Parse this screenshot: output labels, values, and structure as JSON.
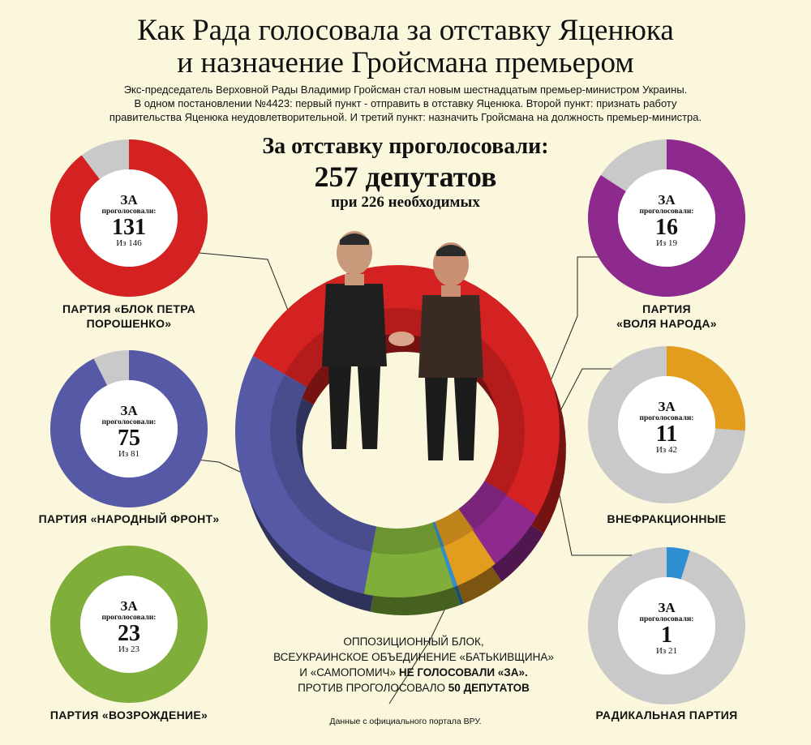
{
  "title_line1": "Как Рада голосовала за отставку Яценюка",
  "title_line2": "и назначение Гройсмана премьером",
  "subtitle": [
    "Экс-председатель Верховной Рады Владимир Гройсман стал новым шестнадцатым премьер-министром Украины.",
    "В одном постановлении №4423: первый пункт - отправить в отставку Яценюка. Второй пункт: признать работу",
    "правительства Яценюка неудовлетворительной. И третий пункт: назначить Гройсмана на должность премьер-министра."
  ],
  "headline": {
    "line1": "За отставку проголосовали:",
    "line2": "257 депутатов",
    "line3": "при 226 необходимых"
  },
  "donut_labels": {
    "za": "ЗА",
    "voted": "проголосовали:"
  },
  "note": {
    "line1": "ОППОЗИЦИОННЫЙ БЛОК,",
    "line2": "ВСЕУКРАИНСКОЕ ОБЪЕДИНЕНИЕ «БАТЬКИВЩИНА»",
    "line3a": "И «САМОПОМИЧ»",
    "line3b": "НЕ ГОЛОСОВАЛИ «ЗА».",
    "line4a": "ПРОТИВ ПРОГОЛОСОВАЛО",
    "line4b": "50 ДЕПУТАТОВ"
  },
  "source": "Данные с официального портала ВРУ.",
  "colors": {
    "background": "#fbf7dc",
    "grey": "#c9c9c9",
    "bpp": "#d42121",
    "nf": "#565aa6",
    "vozr": "#7fae3a",
    "vn": "#8e2a8e",
    "nonfaction": "#e29c1e",
    "radical": "#2f8fd3",
    "outer_light": "#3d6ea5"
  },
  "chart_data": {
    "type": "pie",
    "total": 257,
    "required": 226,
    "parties": [
      {
        "name": "ПАРТИЯ «БЛОК ПЕТРА ПОРОШЕНКО»",
        "label_lines": [
          "ПАРТИЯ «БЛОК ПЕТРА",
          "ПОРОШЕНКО»"
        ],
        "for": 131,
        "total_members": 146,
        "total_label": "Из 146",
        "color": "#d42121"
      },
      {
        "name": "ПАРТИЯ «НАРОДНЫЙ ФРОНТ»",
        "label_lines": [
          "ПАРТИЯ «НАРОДНЫЙ ФРОНТ»"
        ],
        "for": 75,
        "total_members": 81,
        "total_label": "Из 81",
        "color": "#565aa6"
      },
      {
        "name": "ПАРТИЯ «ВОЗРОЖДЕНИЕ»",
        "label_lines": [
          "ПАРТИЯ «ВОЗРОЖДЕНИЕ»"
        ],
        "for": 23,
        "total_members": 23,
        "total_label": "Из 23",
        "color": "#7fae3a"
      },
      {
        "name": "ПАРТИЯ «ВОЛЯ НАРОДА»",
        "label_lines": [
          "ПАРТИЯ",
          "«ВОЛЯ НАРОДА»"
        ],
        "for": 16,
        "total_members": 19,
        "total_label": "Из 19",
        "color": "#8e2a8e"
      },
      {
        "name": "ВНЕФРАКЦИОННЫЕ",
        "label_lines": [
          "ВНЕФРАКЦИОННЫЕ"
        ],
        "for": 11,
        "total_members": 42,
        "total_label": "Из 42",
        "color": "#e29c1e"
      },
      {
        "name": "РАДИКАЛЬНАЯ ПАРТИЯ",
        "label_lines": [
          "РАДИКАЛЬНАЯ ПАРТИЯ"
        ],
        "for": 1,
        "total_members": 21,
        "total_label": "Из 21",
        "color": "#2f8fd3"
      }
    ]
  }
}
